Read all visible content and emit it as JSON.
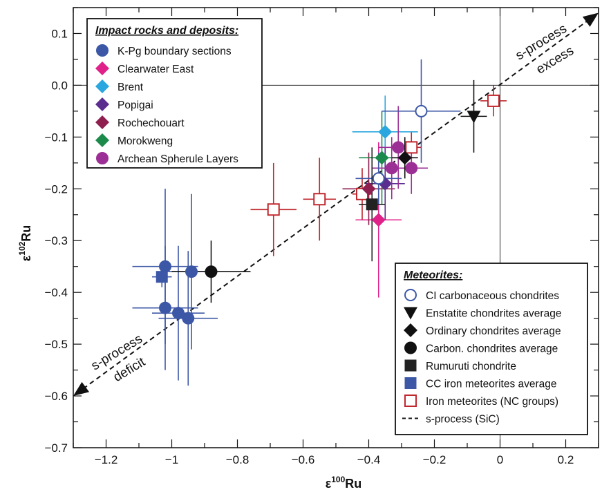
{
  "chart_data": {
    "type": "scatter",
    "xlabel_base": "ε",
    "xlabel_sup": "100",
    "xlabel_tail": "Ru",
    "ylabel_base": "ε",
    "ylabel_sup": "102",
    "ylabel_tail": "Ru",
    "xlim": [
      -1.3,
      0.3
    ],
    "ylim": [
      -0.7,
      0.15
    ],
    "x_ticks": [
      {
        "v": -1.2,
        "label": "−1.2"
      },
      {
        "v": -1.0,
        "label": "−1"
      },
      {
        "v": -0.8,
        "label": "−0.8"
      },
      {
        "v": -0.6,
        "label": "−0.6"
      },
      {
        "v": -0.4,
        "label": "−0.4"
      },
      {
        "v": -0.2,
        "label": "−0.2"
      },
      {
        "v": 0.0,
        "label": "0"
      },
      {
        "v": 0.2,
        "label": "0.2"
      }
    ],
    "y_ticks": [
      {
        "v": 0.1,
        "label": "0.1"
      },
      {
        "v": 0.0,
        "label": "0.0"
      },
      {
        "v": -0.1,
        "label": "−0.1"
      },
      {
        "v": -0.2,
        "label": "−0.2"
      },
      {
        "v": -0.3,
        "label": "−0.3"
      },
      {
        "v": -0.4,
        "label": "−0.4"
      },
      {
        "v": -0.5,
        "label": "−0.5"
      },
      {
        "v": -0.6,
        "label": "−0.6"
      },
      {
        "v": -0.7,
        "label": "−0.7"
      }
    ],
    "reference_lines": {
      "x": 0,
      "y": 0
    },
    "sprocess_line": {
      "x": [
        -1.3,
        0.3
      ],
      "y": [
        -0.6,
        0.14
      ]
    },
    "annotations": {
      "excess": [
        "s-process",
        "excess"
      ],
      "deficit": [
        "s-process",
        "deficit"
      ]
    },
    "legend_impact": {
      "title": "Impact rocks and deposits:",
      "position": "top-left",
      "items": [
        {
          "label": "K-Pg boundary sections",
          "shape": "circle",
          "color": "#3c57a6"
        },
        {
          "label": "Clearwater East",
          "shape": "diamond",
          "color": "#e0218a"
        },
        {
          "label": "Brent",
          "shape": "diamond",
          "color": "#2aa7de"
        },
        {
          "label": "Popigai",
          "shape": "diamond",
          "color": "#5b2d8e"
        },
        {
          "label": "Rochechouart",
          "shape": "diamond",
          "color": "#8e1f4f"
        },
        {
          "label": "Morokweng",
          "shape": "diamond",
          "color": "#1c8a4a"
        },
        {
          "label": "Archean Spherule Layers",
          "shape": "circle",
          "color": "#9b2f95"
        }
      ]
    },
    "legend_meteorites": {
      "title": "Meteorites:",
      "position": "bottom-right",
      "items": [
        {
          "label": "CI carbonaceous chondrites",
          "shape": "open-circle",
          "color": "#3c57a6"
        },
        {
          "label": "Enstatite chondrites average",
          "shape": "triangle-down",
          "color": "#111111"
        },
        {
          "label": "Ordinary chondrites average",
          "shape": "diamond",
          "color": "#111111"
        },
        {
          "label": "Carbon. chondrites average",
          "shape": "circle",
          "color": "#111111"
        },
        {
          "label": "Rumuruti chondrite",
          "shape": "square",
          "color": "#222222"
        },
        {
          "label": "CC iron meteorites average",
          "shape": "square",
          "color": "#3c57a6"
        },
        {
          "label": "Iron meteorites (NC groups)",
          "shape": "open-square",
          "color": "#c0272d"
        },
        {
          "label": "s-process (SiC)",
          "shape": "dashed-line",
          "color": "#111111"
        }
      ]
    },
    "series": [
      {
        "group": "K-Pg boundary sections",
        "shape": "circle",
        "color": "#3c57a6",
        "points": [
          {
            "x": -1.02,
            "y": -0.35,
            "xe": 0.1,
            "ye": 0.15
          },
          {
            "x": -0.94,
            "y": -0.36,
            "xe": 0.07,
            "ye": 0.15
          },
          {
            "x": -1.02,
            "y": -0.43,
            "xe": 0.1,
            "ye": 0.12
          },
          {
            "x": -0.98,
            "y": -0.44,
            "xe": 0.08,
            "ye": 0.13
          },
          {
            "x": -0.95,
            "y": -0.45,
            "xe": 0.09,
            "ye": 0.13
          }
        ]
      },
      {
        "group": "CC iron meteorites average",
        "shape": "square",
        "color": "#3c57a6",
        "points": [
          {
            "x": -1.03,
            "y": -0.37,
            "xe": 0.03,
            "ye": 0.02
          }
        ]
      },
      {
        "group": "Carbon. chondrites average",
        "shape": "circle",
        "color": "#111111",
        "points": [
          {
            "x": -0.88,
            "y": -0.36,
            "xe": 0.12,
            "ye": 0.06
          }
        ]
      },
      {
        "group": "Iron meteorites (NC groups)",
        "shape": "open-square",
        "color": "#c0272d",
        "points": [
          {
            "x": -0.69,
            "y": -0.24,
            "xe": 0.07,
            "ye": 0.09
          },
          {
            "x": -0.55,
            "y": -0.22,
            "xe": 0.05,
            "ye": 0.08
          },
          {
            "x": -0.42,
            "y": -0.21,
            "xe": 0.03,
            "ye": 0.05
          },
          {
            "x": -0.27,
            "y": -0.12,
            "xe": 0.03,
            "ye": 0.03
          },
          {
            "x": -0.02,
            "y": -0.03,
            "xe": 0.04,
            "ye": 0.03
          }
        ]
      },
      {
        "group": "Clearwater East",
        "shape": "diamond",
        "color": "#e0218a",
        "points": [
          {
            "x": -0.37,
            "y": -0.26,
            "xe": 0.07,
            "ye": 0.15
          }
        ]
      },
      {
        "group": "Brent",
        "shape": "diamond",
        "color": "#2aa7de",
        "points": [
          {
            "x": -0.35,
            "y": -0.09,
            "xe": 0.1,
            "ye": 0.07
          }
        ]
      },
      {
        "group": "Popigai",
        "shape": "diamond",
        "color": "#5b2d8e",
        "points": [
          {
            "x": -0.35,
            "y": -0.19,
            "xe": 0.06,
            "ye": 0.07
          }
        ]
      },
      {
        "group": "Rochechouart",
        "shape": "diamond",
        "color": "#8e1f4f",
        "points": [
          {
            "x": -0.4,
            "y": -0.2,
            "xe": 0.08,
            "ye": 0.07
          }
        ]
      },
      {
        "group": "Morokweng",
        "shape": "diamond",
        "color": "#1c8a4a",
        "points": [
          {
            "x": -0.36,
            "y": -0.14,
            "xe": 0.07,
            "ye": 0.09
          }
        ]
      },
      {
        "group": "Archean Spherule Layers",
        "shape": "circle",
        "color": "#9b2f95",
        "points": [
          {
            "x": -0.31,
            "y": -0.12,
            "xe": 0.06,
            "ye": 0.08
          },
          {
            "x": -0.33,
            "y": -0.16,
            "xe": 0.06,
            "ye": 0.06
          },
          {
            "x": -0.27,
            "y": -0.16,
            "xe": 0.05,
            "ye": 0.05
          }
        ]
      },
      {
        "group": "CI carbonaceous chondrites",
        "shape": "open-circle",
        "color": "#3c57a6",
        "points": [
          {
            "x": -0.24,
            "y": -0.05,
            "xe": 0.12,
            "ye": 0.1
          },
          {
            "x": -0.37,
            "y": -0.18,
            "xe": 0.07,
            "ye": 0.05
          }
        ]
      },
      {
        "group": "Ordinary chondrites average",
        "shape": "diamond",
        "color": "#111111",
        "points": [
          {
            "x": -0.29,
            "y": -0.14,
            "xe": 0.04,
            "ye": 0.04
          }
        ]
      },
      {
        "group": "Rumuruti chondrite",
        "shape": "square",
        "color": "#222222",
        "points": [
          {
            "x": -0.39,
            "y": -0.23,
            "xe": 0.04,
            "ye": 0.11
          }
        ]
      },
      {
        "group": "Enstatite chondrites average",
        "shape": "triangle-down",
        "color": "#111111",
        "points": [
          {
            "x": -0.08,
            "y": -0.06,
            "xe": 0.04,
            "ye": 0.07
          }
        ]
      }
    ]
  }
}
